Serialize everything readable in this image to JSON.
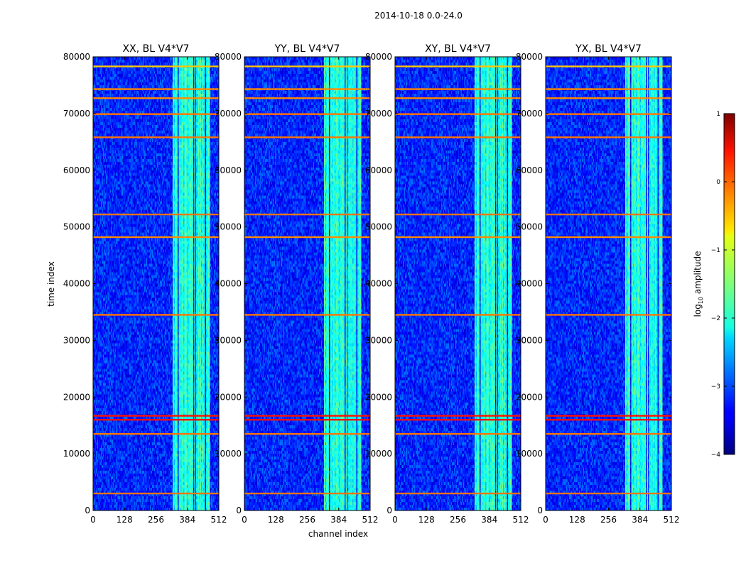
{
  "figure": {
    "suptitle": "2014-10-18 0.0-24.0",
    "xlabel": "channel index",
    "ylabel": "time index"
  },
  "chart_data": {
    "type": "heatmap",
    "panels": [
      {
        "title": "XX, BL V4*V7"
      },
      {
        "title": "YY, BL V4*V7"
      },
      {
        "title": "XY, BL V4*V7"
      },
      {
        "title": "YX, BL V4*V7"
      }
    ],
    "xlim": [
      0,
      512
    ],
    "ylim": [
      0,
      80000
    ],
    "xticks": [
      0,
      128,
      256,
      384,
      512
    ],
    "xtick_labels": [
      "0",
      "128",
      "256",
      "384",
      "512"
    ],
    "yticks": [
      0,
      10000,
      20000,
      30000,
      40000,
      50000,
      60000,
      70000,
      80000
    ],
    "ytick_labels": [
      "0",
      "10000",
      "20000",
      "30000",
      "40000",
      "50000",
      "60000",
      "70000",
      "80000"
    ],
    "background_log_amplitude": -3.2,
    "bright_channel_band": [
      325,
      475
    ],
    "bright_band_log_amplitude": -2.0,
    "flagged_rows": [
      {
        "time": 3000,
        "log_amplitude": -0.2
      },
      {
        "time": 13500,
        "log_amplitude": -0.2
      },
      {
        "time": 16000,
        "log_amplitude": 0.3
      },
      {
        "time": 16700,
        "log_amplitude": 0.3
      },
      {
        "time": 34500,
        "log_amplitude": -0.2
      },
      {
        "time": 48200,
        "log_amplitude": -0.3
      },
      {
        "time": 52200,
        "log_amplitude": -0.2
      },
      {
        "time": 65800,
        "log_amplitude": -0.2
      },
      {
        "time": 69900,
        "log_amplitude": -0.2
      },
      {
        "time": 72700,
        "log_amplitude": -0.3
      },
      {
        "time": 74300,
        "log_amplitude": -0.3
      },
      {
        "time": 78300,
        "log_amplitude": -0.6
      }
    ],
    "colorbar": {
      "label": "log10 amplitude",
      "label_main": "log",
      "label_sub": "10",
      "label_rest": " amplitude",
      "range": [
        -4,
        1
      ],
      "ticks": [
        1,
        0,
        -1,
        -2,
        -3,
        -4
      ],
      "tick_labels": [
        "1",
        "0",
        "−1",
        "−2",
        "−3",
        "−4"
      ]
    }
  }
}
